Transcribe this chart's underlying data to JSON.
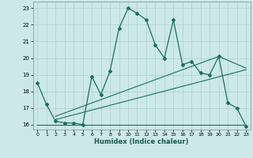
{
  "xlabel": "Humidex (Indice chaleur)",
  "bg_color": "#cce8e8",
  "grid_color": "#b0d0d0",
  "line_color": "#1a7060",
  "xlim": [
    -0.5,
    23.5
  ],
  "ylim": [
    15.7,
    23.4
  ],
  "yticks": [
    16,
    17,
    18,
    19,
    20,
    21,
    22,
    23
  ],
  "xticks": [
    0,
    1,
    2,
    3,
    4,
    5,
    6,
    7,
    8,
    9,
    10,
    11,
    12,
    13,
    14,
    15,
    16,
    17,
    18,
    19,
    20,
    21,
    22,
    23
  ],
  "line1_x": [
    0,
    1,
    2,
    3,
    4,
    5,
    6,
    7,
    8,
    9,
    10,
    11,
    12,
    13,
    14,
    15,
    16,
    17,
    18,
    19,
    20,
    21,
    22,
    23
  ],
  "line1_y": [
    18.5,
    17.2,
    16.2,
    16.1,
    16.1,
    16.0,
    18.9,
    17.8,
    19.2,
    21.8,
    23.0,
    22.7,
    22.3,
    20.8,
    20.0,
    22.3,
    19.6,
    19.8,
    19.1,
    19.0,
    20.1,
    17.3,
    17.0,
    15.9
  ],
  "line2_x": [
    0,
    23
  ],
  "line2_y": [
    16.0,
    16.0
  ],
  "line3_x": [
    2,
    23
  ],
  "line3_y": [
    16.3,
    19.3
  ],
  "line4_x": [
    2,
    20,
    23
  ],
  "line4_y": [
    16.5,
    20.1,
    19.4
  ]
}
